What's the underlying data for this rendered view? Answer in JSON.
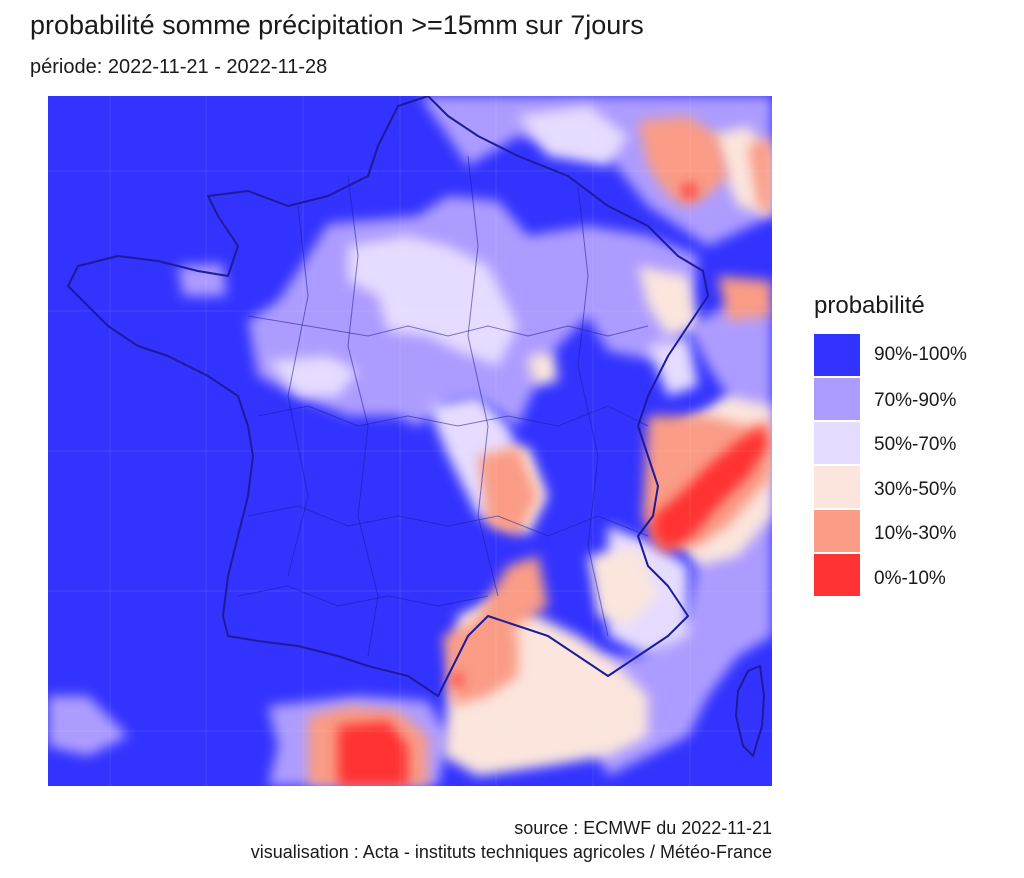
{
  "title": "probabilité somme précipitation >=15mm sur 7jours",
  "subtitle": "période: 2022-11-21 - 2022-11-28",
  "legend": {
    "title": "probabilité",
    "items": [
      {
        "label": "90%-100%",
        "color": "#3333ff"
      },
      {
        "label": "70%-90%",
        "color": "#ad9cff"
      },
      {
        "label": "50%-70%",
        "color": "#e6dcff"
      },
      {
        "label": "30%-50%",
        "color": "#fbe5dd"
      },
      {
        "label": "10%-30%",
        "color": "#fa9c86"
      },
      {
        "label": "0%-10%",
        "color": "#ff3333"
      }
    ]
  },
  "caption": {
    "source": "source : ECMWF du 2022-11-21",
    "visualisation": "visualisation : Acta - instituts techniques agricoles / Météo-France"
  }
}
